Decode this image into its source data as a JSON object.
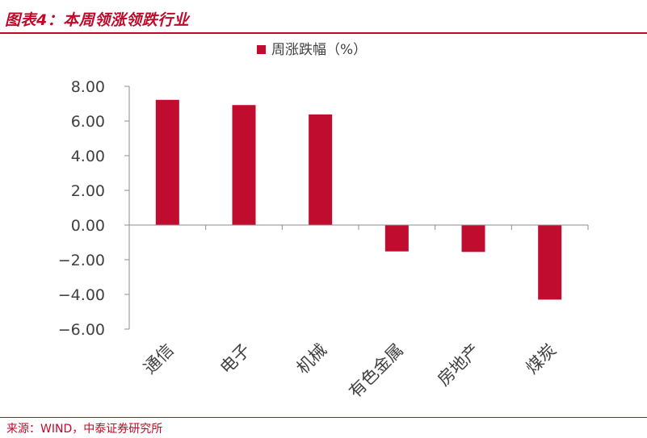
{
  "header": {
    "title": "图表4：本周领涨领跌行业"
  },
  "footer": {
    "source": "来源：WIND，中泰证券研究所"
  },
  "colors": {
    "accent": "#c0092a",
    "bar": "#c00d2f",
    "axis": "#8c8c8c",
    "text": "#404040"
  },
  "chart_data": {
    "type": "bar",
    "title": "",
    "xlabel": "",
    "ylabel": "",
    "legend": {
      "label": "周涨跌幅（%）",
      "position": "top-center"
    },
    "categories": [
      "通信",
      "电子",
      "机械",
      "有色金属",
      "房地产",
      "煤炭"
    ],
    "values": [
      7.22,
      6.92,
      6.38,
      -1.52,
      -1.55,
      -4.3
    ],
    "ylim": [
      -6.0,
      8.0
    ],
    "yticks": [
      "8.00",
      "6.00",
      "4.00",
      "2.00",
      "0.00",
      "−2.00",
      "−4.00",
      "−6.00"
    ],
    "ytick_values": [
      8,
      6,
      4,
      2,
      0,
      -2,
      -4,
      -6
    ],
    "grid": false
  }
}
